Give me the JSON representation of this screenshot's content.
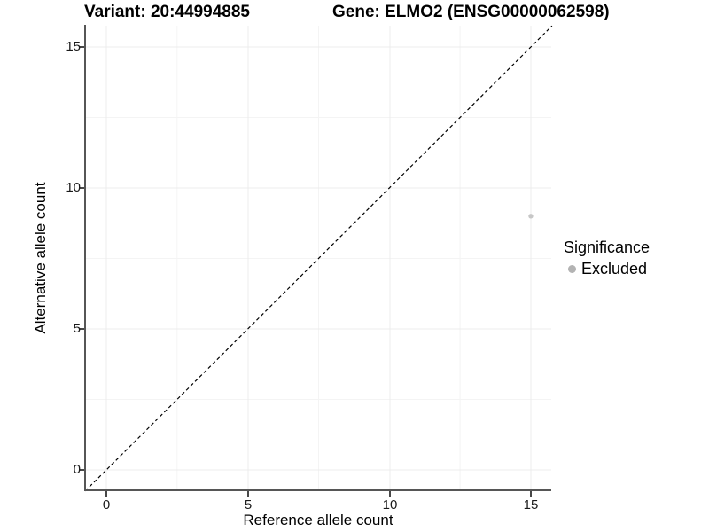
{
  "titles": {
    "left": "Variant: 20:44994885",
    "right": "Gene: ELMO2 (ENSG00000062598)"
  },
  "chart_data": {
    "type": "scatter",
    "title_left": "Variant: 20:44994885",
    "title_right": "Gene: ELMO2 (ENSG00000062598)",
    "xlabel": "Reference allele count",
    "ylabel": "Alternative allele count",
    "x_ticks": [
      "0",
      "5",
      "10",
      "15"
    ],
    "y_ticks": [
      "0",
      "5",
      "10",
      "15"
    ],
    "xlim": [
      -0.75,
      15.75
    ],
    "ylim": [
      -0.75,
      15.75
    ],
    "grid": "major and minor gridlines, very light gray, on white background",
    "reference_line": {
      "slope": 1,
      "intercept": 0,
      "style": "dashed",
      "color": "#000000"
    },
    "points": [
      {
        "x": 15,
        "y": 9,
        "series": "Excluded",
        "color": "#c7c7c7",
        "radius": 2.7
      }
    ],
    "legend": {
      "title": "Significance",
      "position": "right",
      "entries": [
        {
          "label": "Excluded",
          "color": "#b3b3b3"
        }
      ]
    },
    "colors": {
      "axis_line": "#565656",
      "tick_mark": "#333333",
      "grid_major": "#ececec",
      "grid_minor": "#f4f4f4",
      "point_excluded": "#c7c7c7"
    }
  }
}
